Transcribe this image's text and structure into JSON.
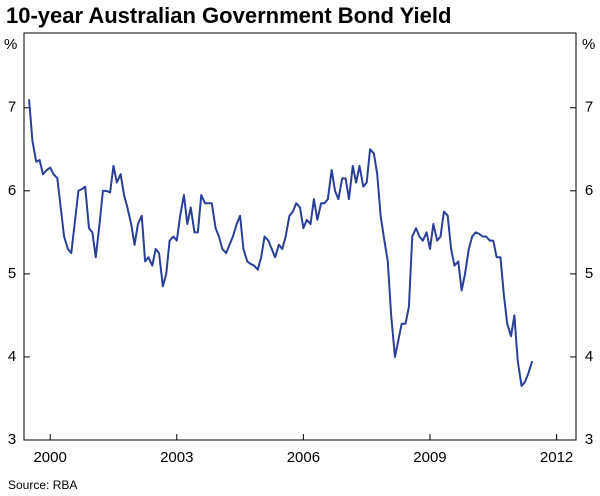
{
  "chart_data": {
    "type": "line",
    "title": "10-year Australian Government Bond Yield",
    "y_unit_left": "%",
    "y_unit_right": "%",
    "source": "Source: RBA",
    "xlim": [
      1999.88,
      2012.96
    ],
    "xticks": [
      {
        "value": 2000.5,
        "label": "2000"
      },
      {
        "value": 2003.5,
        "label": "2003"
      },
      {
        "value": 2006.5,
        "label": "2006"
      },
      {
        "value": 2009.5,
        "label": "2009"
      },
      {
        "value": 2012.5,
        "label": "2012"
      }
    ],
    "ylim": [
      3,
      7.9
    ],
    "yticks": [
      3,
      4,
      5,
      6,
      7
    ],
    "grid": false,
    "x": [
      2000.0,
      2000.08,
      2000.17,
      2000.25,
      2000.33,
      2000.42,
      2000.5,
      2000.58,
      2000.67,
      2000.75,
      2000.83,
      2000.92,
      2001.0,
      2001.08,
      2001.17,
      2001.25,
      2001.33,
      2001.42,
      2001.5,
      2001.58,
      2001.67,
      2001.75,
      2001.83,
      2001.92,
      2002.0,
      2002.08,
      2002.17,
      2002.25,
      2002.33,
      2002.42,
      2002.5,
      2002.58,
      2002.67,
      2002.75,
      2002.83,
      2002.92,
      2003.0,
      2003.08,
      2003.17,
      2003.25,
      2003.33,
      2003.42,
      2003.5,
      2003.58,
      2003.67,
      2003.75,
      2003.83,
      2003.92,
      2004.0,
      2004.08,
      2004.17,
      2004.25,
      2004.33,
      2004.42,
      2004.5,
      2004.58,
      2004.67,
      2004.75,
      2004.83,
      2004.92,
      2005.0,
      2005.08,
      2005.17,
      2005.25,
      2005.33,
      2005.42,
      2005.5,
      2005.58,
      2005.67,
      2005.75,
      2005.83,
      2005.92,
      2006.0,
      2006.08,
      2006.17,
      2006.25,
      2006.33,
      2006.42,
      2006.5,
      2006.58,
      2006.67,
      2006.75,
      2006.83,
      2006.92,
      2007.0,
      2007.08,
      2007.17,
      2007.25,
      2007.33,
      2007.42,
      2007.5,
      2007.58,
      2007.67,
      2007.75,
      2007.83,
      2007.92,
      2008.0,
      2008.08,
      2008.17,
      2008.25,
      2008.33,
      2008.42,
      2008.5,
      2008.58,
      2008.67,
      2008.75,
      2008.83,
      2008.92,
      2009.0,
      2009.08,
      2009.17,
      2009.25,
      2009.33,
      2009.42,
      2009.5,
      2009.58,
      2009.67,
      2009.75,
      2009.83,
      2009.92,
      2010.0,
      2010.08,
      2010.17,
      2010.25,
      2010.33,
      2010.42,
      2010.5,
      2010.58,
      2010.67,
      2010.75,
      2010.83,
      2010.92,
      2011.0,
      2011.08,
      2011.17,
      2011.25,
      2011.33,
      2011.42,
      2011.5,
      2011.58,
      2011.67,
      2011.75,
      2011.83,
      2011.92
    ],
    "series": [
      {
        "name": "10-year yield",
        "color": "#2a3f98",
        "values": [
          7.1,
          6.6,
          6.35,
          6.37,
          6.2,
          6.25,
          6.28,
          6.2,
          6.15,
          5.8,
          5.45,
          5.3,
          5.25,
          5.6,
          6.0,
          6.02,
          6.05,
          5.55,
          5.5,
          5.2,
          5.6,
          6.0,
          6.0,
          5.98,
          6.3,
          6.1,
          6.2,
          5.95,
          5.8,
          5.6,
          5.35,
          5.6,
          5.7,
          5.15,
          5.2,
          5.1,
          5.3,
          5.25,
          4.85,
          5.0,
          5.4,
          5.45,
          5.4,
          5.7,
          5.95,
          5.6,
          5.8,
          5.5,
          5.5,
          5.95,
          5.85,
          5.85,
          5.85,
          5.55,
          5.45,
          5.3,
          5.25,
          5.35,
          5.45,
          5.6,
          5.7,
          5.3,
          5.15,
          5.12,
          5.1,
          5.05,
          5.2,
          5.45,
          5.4,
          5.3,
          5.2,
          5.35,
          5.3,
          5.45,
          5.7,
          5.75,
          5.85,
          5.8,
          5.55,
          5.65,
          5.6,
          5.9,
          5.65,
          5.85,
          5.85,
          5.9,
          6.25,
          6.0,
          5.9,
          6.15,
          6.15,
          5.9,
          6.3,
          6.1,
          6.3,
          6.05,
          6.1,
          6.5,
          6.45,
          6.2,
          5.7,
          5.4,
          5.15,
          4.5,
          4.0,
          4.2,
          4.4,
          4.4,
          4.6,
          5.45,
          5.55,
          5.45,
          5.4,
          5.5,
          5.3,
          5.6,
          5.4,
          5.45,
          5.75,
          5.7,
          5.3,
          5.1,
          5.15,
          4.8,
          5.0,
          5.3,
          5.45,
          5.5,
          5.48,
          5.45,
          5.45,
          5.4,
          5.4,
          5.2,
          5.2,
          4.75,
          4.4,
          4.25,
          4.5,
          3.95,
          3.65,
          3.7,
          3.8,
          3.95
        ]
      }
    ]
  }
}
